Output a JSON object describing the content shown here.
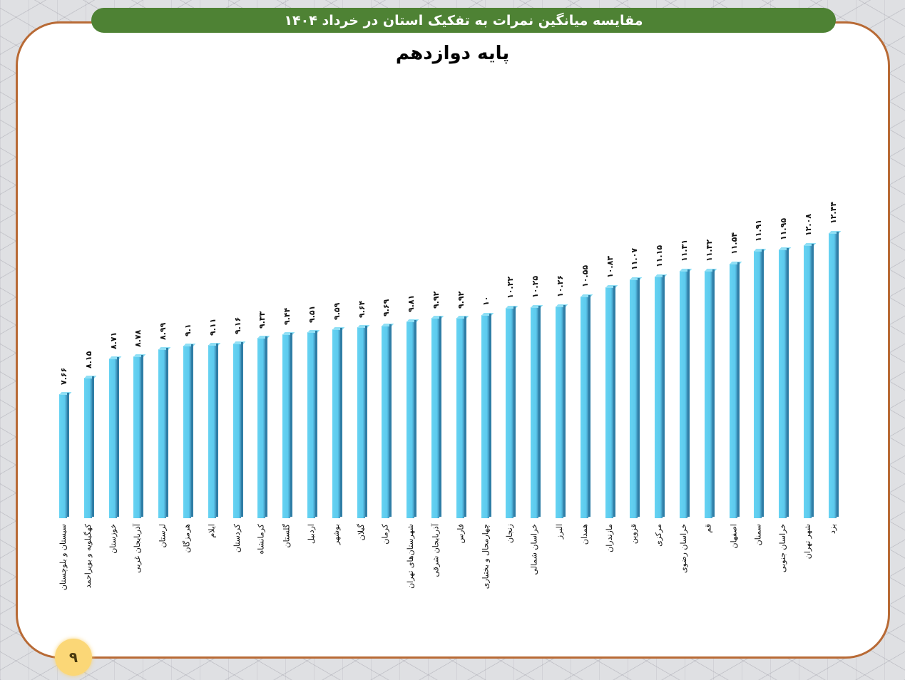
{
  "header": {
    "title": "مقایسه میانگین نمرات به تفکیک استان در خرداد ۱۴۰۴",
    "subtitle": "پایه دوازدهم"
  },
  "page_number": "۹",
  "colors": {
    "bar": "#5ccaee",
    "title_bar": "#4e8234",
    "frame_border": "#b86a35",
    "page_badge": "#fbd777"
  },
  "chart_data": {
    "type": "bar",
    "title": "پایه دوازدهم",
    "xlabel": "",
    "ylabel": "",
    "grid": false,
    "legend": "none",
    "ylim": [
      0,
      13
    ],
    "categories": [
      "سیستان و بلوچستان",
      "کهگیلویه و بویراحمد",
      "خوزستان",
      "آذربایجان غربی",
      "لرستان",
      "هرمزگان",
      "ایلام",
      "کردستان",
      "کرمانشاه",
      "گلستان",
      "اردبیل",
      "بوشهر",
      "گیلان",
      "کرمان",
      "شهرستان‌های تهران",
      "آذربایجان شرقی",
      "فارس",
      "چهارمحال و بختیاری",
      "زنجان",
      "خراسان شمالی",
      "البرز",
      "همدان",
      "مازندران",
      "قزوین",
      "مرکزی",
      "خراسان رضوی",
      "قم",
      "اصفهان",
      "سمنان",
      "خراسان جنوبی",
      "شهر تهران",
      "یزد"
    ],
    "values": [
      7.66,
      8.15,
      8.71,
      8.78,
      8.99,
      9.1,
      9.11,
      9.16,
      9.33,
      9.44,
      9.51,
      9.59,
      9.64,
      9.69,
      9.81,
      9.92,
      9.92,
      10,
      10.22,
      10.25,
      10.26,
      10.55,
      10.83,
      11.07,
      11.15,
      11.31,
      11.32,
      11.54,
      11.91,
      11.95,
      12.08,
      12.44
    ],
    "value_labels": [
      "۷.۶۶",
      "۸.۱۵",
      "۸.۷۱",
      "۸.۷۸",
      "۸.۹۹",
      "۹.۱",
      "۹.۱۱",
      "۹.۱۶",
      "۹.۳۳",
      "۹.۴۴",
      "۹.۵۱",
      "۹.۵۹",
      "۹.۶۴",
      "۹.۶۹",
      "۹.۸۱",
      "۹.۹۲",
      "۹.۹۲",
      "۱۰",
      "۱۰.۲۲",
      "۱۰.۲۵",
      "۱۰.۲۶",
      "۱۰.۵۵",
      "۱۰.۸۳",
      "۱۱.۰۷",
      "۱۱.۱۵",
      "۱۱.۳۱",
      "۱۱.۳۲",
      "۱۱.۵۴",
      "۱۱.۹۱",
      "۱۱.۹۵",
      "۱۲.۰۸",
      "۱۲.۴۴"
    ]
  }
}
